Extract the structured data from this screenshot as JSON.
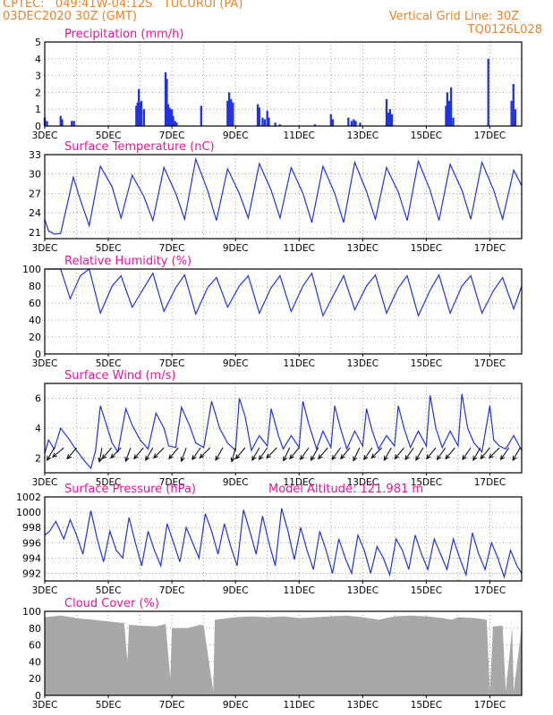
{
  "header": {
    "line1": "CPTEC:   049:41W-04:12S   TUCURUI (PA)",
    "line2": "03DEC2020 30Z (GMT)",
    "grid_note": "Vertical Grid Line: 30Z",
    "code": "TQ0126L028",
    "altitude": "Model Altitude: 121.981 m"
  },
  "colors": {
    "header": "#e8832a",
    "title": "#ee1199",
    "line": "#2233dd",
    "cloud": "#a8a8a8",
    "grid": "#888888"
  },
  "chart_data": [
    {
      "type": "bar",
      "title": "Precipitation (mm/h)",
      "ylim": [
        0,
        5
      ],
      "yticks": [
        "0",
        "1",
        "2",
        "3",
        "4",
        "5"
      ],
      "xtick_labels": [
        "3DEC",
        "5DEC",
        "7DEC",
        "9DEC",
        "11DEC",
        "13DEC",
        "15DEC",
        "17DEC"
      ],
      "grid": "dotted",
      "x_days": [
        3.0,
        3.07,
        3.5,
        3.55,
        3.85,
        3.92,
        5.88,
        5.92,
        5.96,
        6.0,
        6.04,
        6.12,
        6.8,
        6.84,
        6.88,
        6.92,
        6.96,
        7.0,
        7.04,
        7.1,
        7.15,
        7.92,
        8.75,
        8.8,
        8.86,
        8.92,
        9.7,
        9.75,
        9.85,
        9.92,
        10.0,
        10.05,
        10.25,
        10.4,
        11.5,
        12.0,
        12.06,
        12.55,
        12.65,
        12.72,
        12.78,
        12.92,
        13.75,
        13.8,
        13.86,
        13.92,
        15.62,
        15.66,
        15.72,
        15.78,
        15.85,
        16.95,
        17.68,
        17.74,
        17.8
      ],
      "values": [
        0.5,
        0.3,
        0.6,
        0.4,
        0.3,
        0.3,
        1.2,
        1.4,
        2.2,
        1.4,
        1.5,
        1.0,
        3.2,
        2.8,
        1.3,
        1.1,
        1.0,
        1.0,
        0.6,
        0.3,
        0.2,
        1.2,
        1.5,
        2.0,
        1.6,
        1.4,
        1.3,
        1.1,
        0.5,
        0.4,
        0.9,
        0.5,
        0.2,
        0.1,
        0.1,
        0.7,
        0.4,
        0.5,
        0.3,
        0.4,
        0.3,
        0.2,
        1.6,
        0.8,
        1.0,
        0.7,
        1.2,
        2.0,
        1.5,
        2.3,
        0.5,
        4.0,
        1.5,
        2.5,
        1.0
      ]
    },
    {
      "type": "line",
      "title": "Surface Temperature (nC)",
      "ylim": [
        20,
        33
      ],
      "yticks": [
        "21",
        "24",
        "27",
        "30",
        "33"
      ],
      "xtick_labels": [
        "3DEC",
        "5DEC",
        "7DEC",
        "9DEC",
        "11DEC",
        "13DEC",
        "15DEC",
        "17DEC"
      ],
      "grid": "dotted",
      "x": [
        3.0,
        3.12,
        3.3,
        3.5,
        3.9,
        4.12,
        4.4,
        4.75,
        5.12,
        5.4,
        5.75,
        6.12,
        6.4,
        6.75,
        7.12,
        7.4,
        7.75,
        8.12,
        8.4,
        8.75,
        9.12,
        9.4,
        9.75,
        10.12,
        10.4,
        10.75,
        11.12,
        11.4,
        11.75,
        12.12,
        12.4,
        12.75,
        13.12,
        13.4,
        13.75,
        14.12,
        14.4,
        14.75,
        15.12,
        15.4,
        15.75,
        16.12,
        16.4,
        16.75,
        17.12,
        17.4,
        17.75,
        18.0
      ],
      "values": [
        23.0,
        21.2,
        20.7,
        20.8,
        29.5,
        26.0,
        22.0,
        31.2,
        28.0,
        23.2,
        29.8,
        26.5,
        22.8,
        31.0,
        27.0,
        23.0,
        32.3,
        27.5,
        22.8,
        30.8,
        27.0,
        23.2,
        31.6,
        27.5,
        23.2,
        31.0,
        27.0,
        22.5,
        31.2,
        27.0,
        22.5,
        31.8,
        27.3,
        23.0,
        31.0,
        27.2,
        22.8,
        32.0,
        27.5,
        22.8,
        31.5,
        27.5,
        23.0,
        31.8,
        27.5,
        23.0,
        30.6,
        28.2
      ]
    },
    {
      "type": "line",
      "title": "Relative Humidity (%)",
      "ylim": [
        0,
        100
      ],
      "yticks": [
        "0",
        "20",
        "40",
        "60",
        "80",
        "100"
      ],
      "xtick_labels": [
        "3DEC",
        "5DEC",
        "7DEC",
        "9DEC",
        "11DEC",
        "13DEC",
        "15DEC",
        "17DEC"
      ],
      "grid": "dotted",
      "x": [
        3.0,
        3.5,
        3.8,
        4.12,
        4.4,
        4.75,
        5.12,
        5.4,
        5.75,
        6.12,
        6.4,
        6.75,
        7.12,
        7.4,
        7.75,
        8.12,
        8.4,
        8.75,
        9.12,
        9.4,
        9.75,
        10.12,
        10.4,
        10.75,
        11.12,
        11.4,
        11.75,
        12.12,
        12.4,
        12.75,
        13.12,
        13.4,
        13.75,
        14.12,
        14.4,
        14.75,
        15.12,
        15.4,
        15.75,
        16.12,
        16.4,
        16.75,
        17.12,
        17.4,
        17.75,
        18.0
      ],
      "values": [
        100,
        100,
        65,
        92,
        100,
        48,
        80,
        92,
        55,
        78,
        95,
        50,
        78,
        93,
        47,
        78,
        90,
        55,
        80,
        92,
        48,
        78,
        92,
        50,
        80,
        95,
        45,
        72,
        92,
        52,
        80,
        93,
        48,
        78,
        92,
        45,
        75,
        93,
        48,
        80,
        92,
        48,
        75,
        90,
        53,
        80
      ]
    },
    {
      "type": "line",
      "title": "Surface Wind (m/s)",
      "ylim": [
        1,
        7
      ],
      "yticks": [
        "2",
        "4",
        "6"
      ],
      "xtick_labels": [
        "3DEC",
        "5DEC",
        "7DEC",
        "9DEC",
        "11DEC",
        "13DEC",
        "15DEC",
        "17DEC"
      ],
      "grid": "dotted",
      "x": [
        3.0,
        3.12,
        3.3,
        3.5,
        3.75,
        4.0,
        4.25,
        4.45,
        4.6,
        4.75,
        4.9,
        5.12,
        5.3,
        5.55,
        5.75,
        6.0,
        6.25,
        6.5,
        6.75,
        6.9,
        7.12,
        7.3,
        7.55,
        7.75,
        8.0,
        8.25,
        8.5,
        8.75,
        9.0,
        9.12,
        9.3,
        9.5,
        9.75,
        10.0,
        10.12,
        10.35,
        10.5,
        10.75,
        11.0,
        11.12,
        11.3,
        11.55,
        11.75,
        12.0,
        12.12,
        12.3,
        12.5,
        12.75,
        13.0,
        13.12,
        13.3,
        13.5,
        13.75,
        14.0,
        14.12,
        14.3,
        14.5,
        14.75,
        15.0,
        15.12,
        15.3,
        15.5,
        15.75,
        16.0,
        16.12,
        16.3,
        16.5,
        16.75,
        17.0,
        17.12,
        17.3,
        17.5,
        17.75,
        18.0
      ],
      "values": [
        2.3,
        3.2,
        2.6,
        4.0,
        3.3,
        2.5,
        1.8,
        1.3,
        2.5,
        5.5,
        4.5,
        3.0,
        2.4,
        5.3,
        4.2,
        3.2,
        2.6,
        5.0,
        4.0,
        2.8,
        2.7,
        5.4,
        4.2,
        3.0,
        2.7,
        5.8,
        4.0,
        3.0,
        2.5,
        6.0,
        4.8,
        2.5,
        3.5,
        2.8,
        5.3,
        3.5,
        2.6,
        3.5,
        2.7,
        5.8,
        4.3,
        2.6,
        3.8,
        2.7,
        5.5,
        4.0,
        2.6,
        3.8,
        2.8,
        5.3,
        3.8,
        2.6,
        3.5,
        2.8,
        5.5,
        4.0,
        2.7,
        3.8,
        2.8,
        6.2,
        4.0,
        2.7,
        3.8,
        2.8,
        6.3,
        4.0,
        3.0,
        2.4,
        5.5,
        3.2,
        2.8,
        2.6,
        3.5,
        2.5
      ],
      "arrow_days": [
        3.3,
        3.6,
        4.0,
        4.8,
        5.1,
        5.4,
        5.7,
        6.1,
        6.4,
        6.75,
        7.2,
        7.45,
        7.9,
        8.2,
        8.6,
        9.0,
        9.3,
        9.75,
        10.0,
        10.3,
        10.7,
        11.0,
        11.3,
        11.6,
        11.9,
        12.3,
        12.6,
        12.9,
        13.3,
        13.6,
        13.9,
        14.3,
        14.6,
        14.9,
        15.3,
        15.6,
        15.9,
        16.4,
        16.7,
        17.0,
        17.3,
        17.6,
        17.95
      ],
      "arrow_dirs": [
        60,
        40,
        50,
        80,
        50,
        45,
        70,
        50,
        60,
        45,
        50,
        70,
        55,
        45,
        60,
        75,
        50,
        60,
        55,
        45,
        65,
        50,
        55,
        60,
        50,
        55,
        50,
        65,
        55,
        45,
        60,
        50,
        55,
        60,
        50,
        55,
        50,
        55,
        60,
        50,
        45,
        55,
        60
      ]
    },
    {
      "type": "line",
      "title": "Surface Pressure (hPa)",
      "ylim": [
        991,
        1002
      ],
      "yticks": [
        "992",
        "994",
        "996",
        "998",
        "1000",
        "1002"
      ],
      "xtick_labels": [
        "3DEC",
        "5DEC",
        "7DEC",
        "9DEC",
        "11DEC",
        "13DEC",
        "15DEC",
        "17DEC"
      ],
      "grid": "dotted",
      "x": [
        3.0,
        3.15,
        3.35,
        3.6,
        3.8,
        4.0,
        4.2,
        4.45,
        4.65,
        4.85,
        5.05,
        5.25,
        5.45,
        5.65,
        5.85,
        6.05,
        6.25,
        6.45,
        6.65,
        6.85,
        7.05,
        7.25,
        7.45,
        7.65,
        7.85,
        8.05,
        8.25,
        8.45,
        8.65,
        8.85,
        9.05,
        9.25,
        9.45,
        9.65,
        9.85,
        10.05,
        10.25,
        10.45,
        10.65,
        10.85,
        11.05,
        11.25,
        11.45,
        11.65,
        11.85,
        12.05,
        12.25,
        12.45,
        12.65,
        12.85,
        13.05,
        13.25,
        13.45,
        13.65,
        13.85,
        14.05,
        14.25,
        14.45,
        14.65,
        14.85,
        15.05,
        15.25,
        15.45,
        15.65,
        15.85,
        16.05,
        16.25,
        16.45,
        16.65,
        16.85,
        17.05,
        17.25,
        17.45,
        17.65,
        17.85,
        18.0
      ],
      "values": [
        997,
        997.5,
        998.8,
        996.5,
        999,
        997,
        994.5,
        1000.2,
        996.5,
        993.5,
        997.5,
        995,
        994,
        999.3,
        996,
        993,
        997.5,
        995,
        993,
        998.5,
        996,
        993.5,
        998,
        996,
        994,
        999.8,
        997.5,
        994.5,
        998.5,
        995.5,
        993,
        1000.3,
        997.5,
        994.5,
        999.5,
        996,
        993,
        1000.5,
        997.5,
        993.8,
        998,
        995,
        992.5,
        997.5,
        995,
        992,
        996.5,
        994,
        992,
        997,
        995,
        992,
        995.5,
        994,
        991.8,
        996.5,
        995,
        992.5,
        997,
        994.5,
        992.5,
        996.5,
        994.5,
        992.5,
        996.5,
        994,
        991.8,
        997.3,
        994.5,
        992.5,
        996,
        994,
        991.5,
        995,
        993,
        992
      ]
    },
    {
      "type": "area",
      "title": "Cloud Cover (%)",
      "ylim": [
        0,
        100
      ],
      "yticks": [
        "0",
        "20",
        "40",
        "60",
        "80",
        "100"
      ],
      "xtick_labels": [
        "3DEC",
        "5DEC",
        "7DEC",
        "9DEC",
        "11DEC",
        "13DEC",
        "15DEC",
        "17DEC"
      ],
      "grid": "dotted",
      "x": [
        3.0,
        3.5,
        4.0,
        4.5,
        5.0,
        5.5,
        5.6,
        5.65,
        6.0,
        6.5,
        6.8,
        6.95,
        7.0,
        7.5,
        7.9,
        8.0,
        8.3,
        8.35,
        8.8,
        9.0,
        9.5,
        10.0,
        10.5,
        11.0,
        11.5,
        12.0,
        12.5,
        13.0,
        13.5,
        14.0,
        14.5,
        15.0,
        15.5,
        15.8,
        16.0,
        16.5,
        16.9,
        17.0,
        17.1,
        17.4,
        17.5,
        17.7,
        17.75,
        18.0
      ],
      "values": [
        93,
        95,
        92,
        90,
        88,
        86,
        40,
        84,
        83,
        82,
        85,
        20,
        80,
        80,
        84,
        83,
        5,
        90,
        92,
        93,
        94,
        93,
        94,
        92,
        93,
        94,
        95,
        93,
        90,
        94,
        95,
        94,
        92,
        90,
        93,
        92,
        90,
        5,
        82,
        83,
        5,
        80,
        5,
        82
      ]
    }
  ]
}
